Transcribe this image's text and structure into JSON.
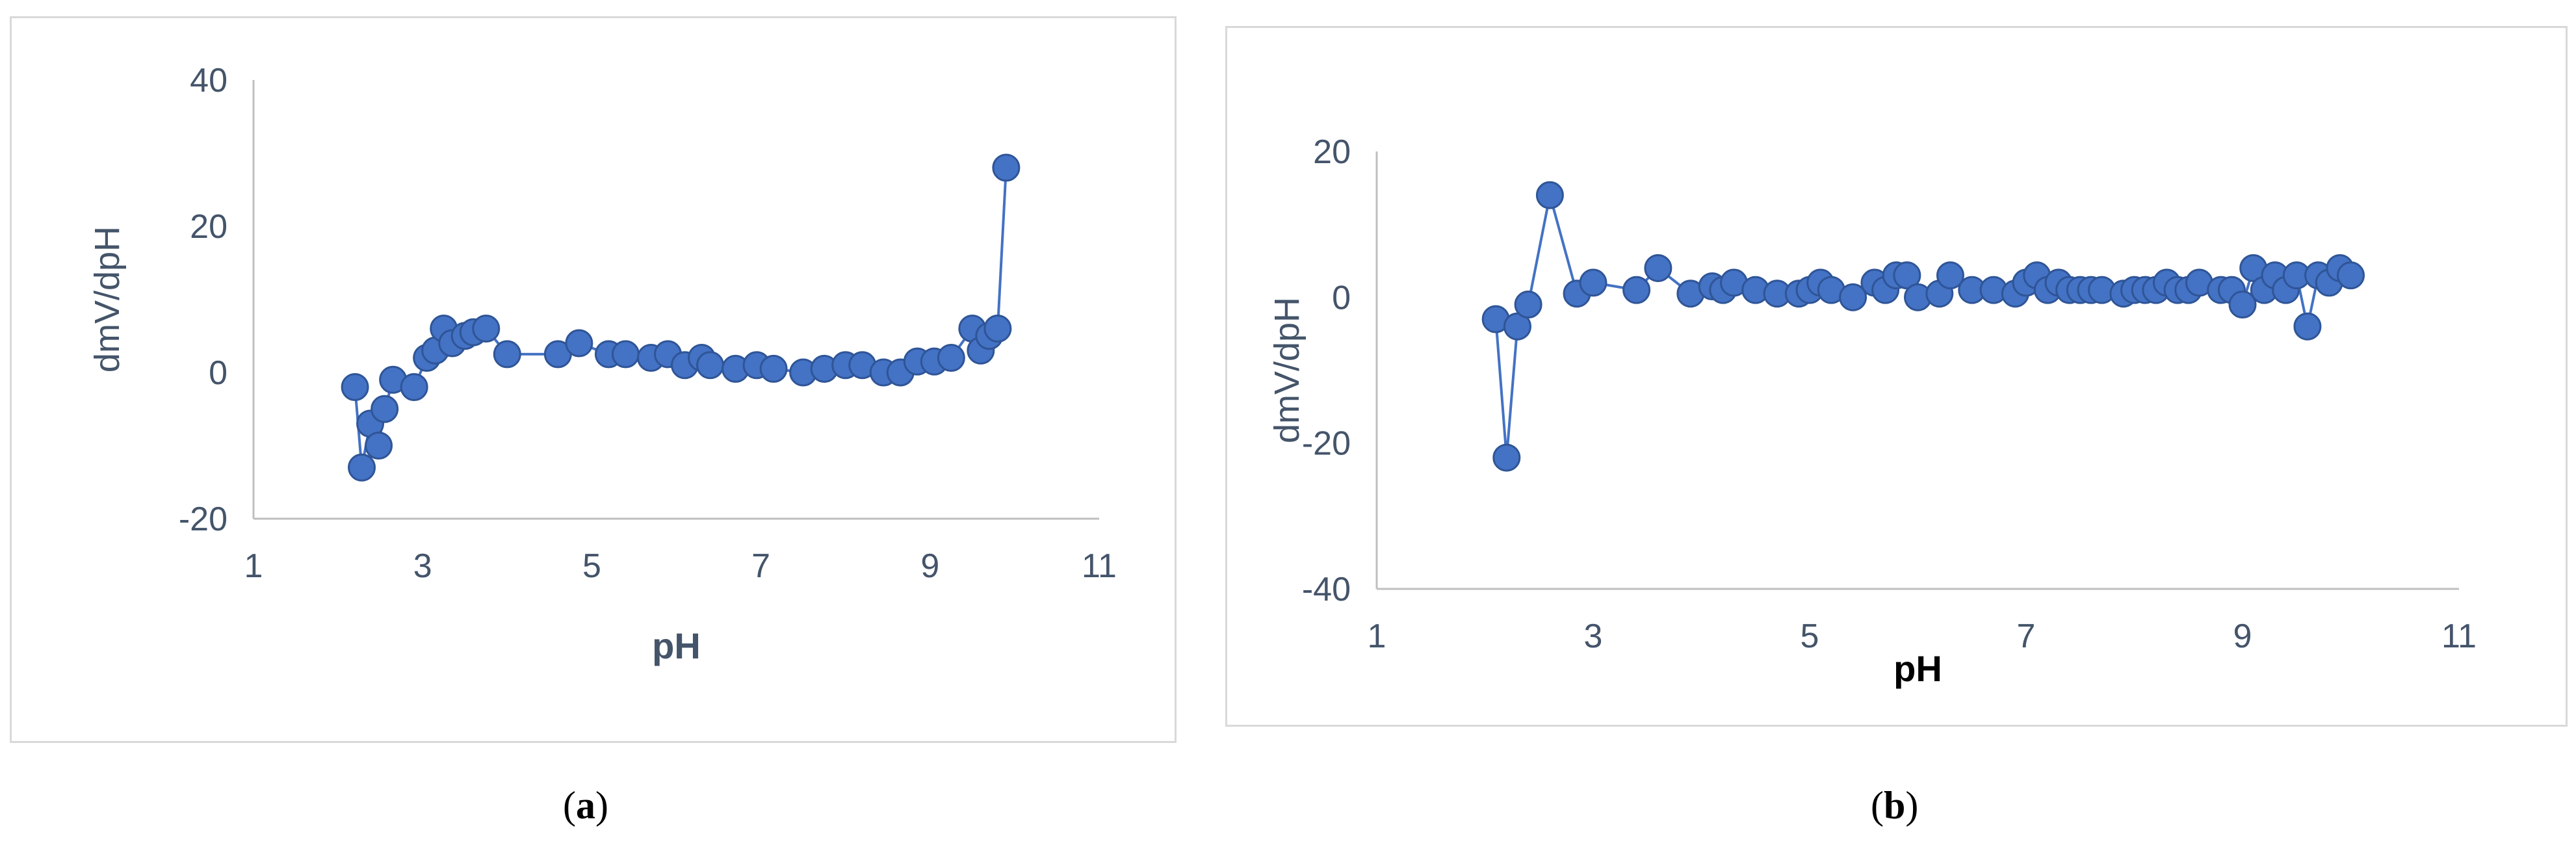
{
  "chart_data": [
    {
      "type": "scatter",
      "panel_label": "a",
      "xlabel": "pH",
      "ylabel": "dmV/dpH",
      "xlim": [
        1,
        11
      ],
      "ylim": [
        -20,
        40
      ],
      "xticks": [
        1,
        3,
        5,
        7,
        9,
        11
      ],
      "yticks": [
        -20,
        0,
        20,
        40
      ],
      "grid": false,
      "lines": true,
      "marker_color": "#4472c4",
      "line_color": "#4472c4",
      "series": [
        {
          "x": [
            2.2,
            2.28,
            2.38,
            2.48,
            2.55,
            2.65,
            2.9,
            3.05,
            3.15,
            3.25,
            3.35,
            3.5,
            3.6,
            3.75,
            4.0,
            4.6,
            4.85,
            5.2,
            5.4,
            5.7,
            5.9,
            6.1,
            6.3,
            6.4,
            6.7,
            6.95,
            7.15,
            7.5,
            7.75,
            8.0,
            8.2,
            8.45,
            8.65,
            8.85,
            9.05,
            9.25,
            9.5,
            9.6,
            9.7,
            9.8,
            9.9
          ],
          "y": [
            -2,
            -13,
            -7,
            -10,
            -5,
            -1,
            -2,
            2,
            3,
            6,
            4,
            5,
            5.5,
            6,
            2.5,
            2.5,
            4,
            2.5,
            2.5,
            2,
            2.5,
            1,
            2,
            1,
            0.5,
            1,
            0.5,
            0,
            0.5,
            1,
            1,
            0,
            0,
            1.5,
            1.5,
            2,
            6,
            3,
            5,
            6,
            28
          ]
        }
      ]
    },
    {
      "type": "scatter",
      "panel_label": "b",
      "xlabel": "pH",
      "ylabel": "dmV/dpH",
      "xlim": [
        1,
        11
      ],
      "ylim": [
        -40,
        20
      ],
      "xticks": [
        1,
        3,
        5,
        7,
        9,
        11
      ],
      "yticks": [
        -40,
        -20,
        0,
        20
      ],
      "grid": false,
      "lines": true,
      "marker_color": "#4472c4",
      "line_color": "#4472c4",
      "series": [
        {
          "x": [
            2.1,
            2.2,
            2.3,
            2.4,
            2.6,
            2.85,
            3.0,
            3.4,
            3.6,
            3.9,
            4.1,
            4.2,
            4.3,
            4.5,
            4.7,
            4.9,
            5.0,
            5.1,
            5.2,
            5.4,
            5.6,
            5.7,
            5.8,
            5.9,
            6.0,
            6.2,
            6.3,
            6.5,
            6.7,
            6.9,
            7.0,
            7.1,
            7.2,
            7.3,
            7.4,
            7.5,
            7.6,
            7.7,
            7.9,
            8.0,
            8.1,
            8.2,
            8.3,
            8.4,
            8.5,
            8.6,
            8.8,
            8.9,
            9.0,
            9.1,
            9.2,
            9.3,
            9.4,
            9.5,
            9.6,
            9.7,
            9.8,
            9.9,
            10.0
          ],
          "y": [
            -3,
            -22,
            -4,
            -1,
            14,
            0.5,
            2,
            1,
            4,
            0.5,
            1.5,
            1,
            2,
            1,
            0.5,
            0.5,
            1,
            2,
            1,
            0,
            2,
            1,
            3,
            3,
            0,
            0.5,
            3,
            1,
            1,
            0.5,
            2,
            3,
            1,
            2,
            1,
            1,
            1,
            1,
            0.5,
            1,
            1,
            1,
            2,
            1,
            1,
            2,
            1,
            1,
            -1,
            4,
            1,
            3,
            1,
            3,
            -4,
            3,
            2,
            4,
            3
          ]
        }
      ]
    }
  ],
  "captions": {
    "a": {
      "open": "(",
      "letter": "a",
      "close": ")"
    },
    "b": {
      "open": "(",
      "letter": "b",
      "close": ")"
    }
  }
}
